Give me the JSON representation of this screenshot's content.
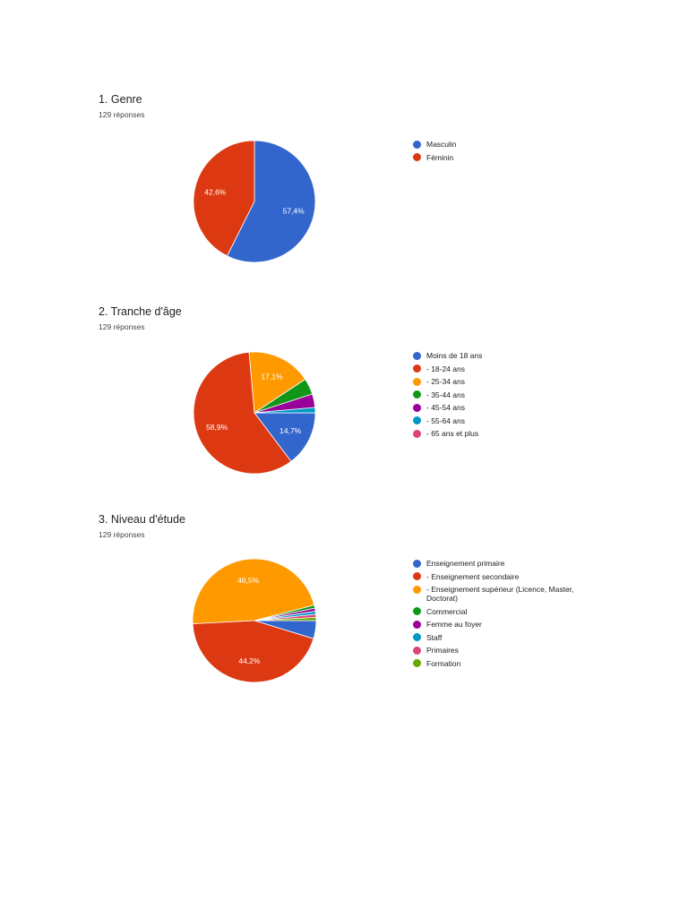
{
  "chart_data": [
    {
      "type": "pie",
      "title": "1. Genre",
      "subtitle": "129 réponses",
      "legend_position": "right",
      "start_angle_deg": 90,
      "categories": [
        "Masculin",
        "Féminin"
      ],
      "values": [
        57.4,
        42.6
      ],
      "labels": [
        "57,4%",
        "42,6%"
      ],
      "colors": [
        "#3366cc",
        "#dc3912"
      ]
    },
    {
      "type": "pie",
      "title": "2. Tranche d'âge",
      "subtitle": "129 réponses",
      "legend_position": "right",
      "start_angle_deg": 0,
      "categories": [
        "Moins de 18 ans",
        "- 18-24 ans",
        "- 25-34 ans",
        "- 35-44 ans",
        "- 45-54 ans",
        "- 55-64 ans",
        "- 65 ans et plus"
      ],
      "values": [
        14.7,
        58.9,
        17.1,
        4.3,
        3.6,
        1.4,
        0
      ],
      "labels": [
        "14,7%",
        "58,9%",
        "17,1%",
        "",
        "",
        "",
        ""
      ],
      "colors": [
        "#3366cc",
        "#dc3912",
        "#ff9900",
        "#109618",
        "#990099",
        "#0099c6",
        "#dd4477"
      ]
    },
    {
      "type": "pie",
      "title": "3. Niveau d'étude",
      "subtitle": "129 réponses",
      "legend_position": "right",
      "start_angle_deg": 0,
      "categories": [
        "Enseignement primaire",
        "- Enseignement secondaire",
        "- Enseignement supérieur (Licence, Master, Doctorat)",
        "Commercial",
        "Femme au foyer",
        "Staff",
        "Primaires",
        "Formation"
      ],
      "values": [
        4.7,
        44.2,
        46.5,
        0.8,
        0.8,
        0.8,
        0.8,
        0.8
      ],
      "labels": [
        "",
        "44,2%",
        "46,5%",
        "",
        "",
        "",
        "",
        ""
      ],
      "colors": [
        "#3366cc",
        "#dc3912",
        "#ff9900",
        "#109618",
        "#990099",
        "#0099c6",
        "#dd4477",
        "#66aa00"
      ]
    }
  ]
}
